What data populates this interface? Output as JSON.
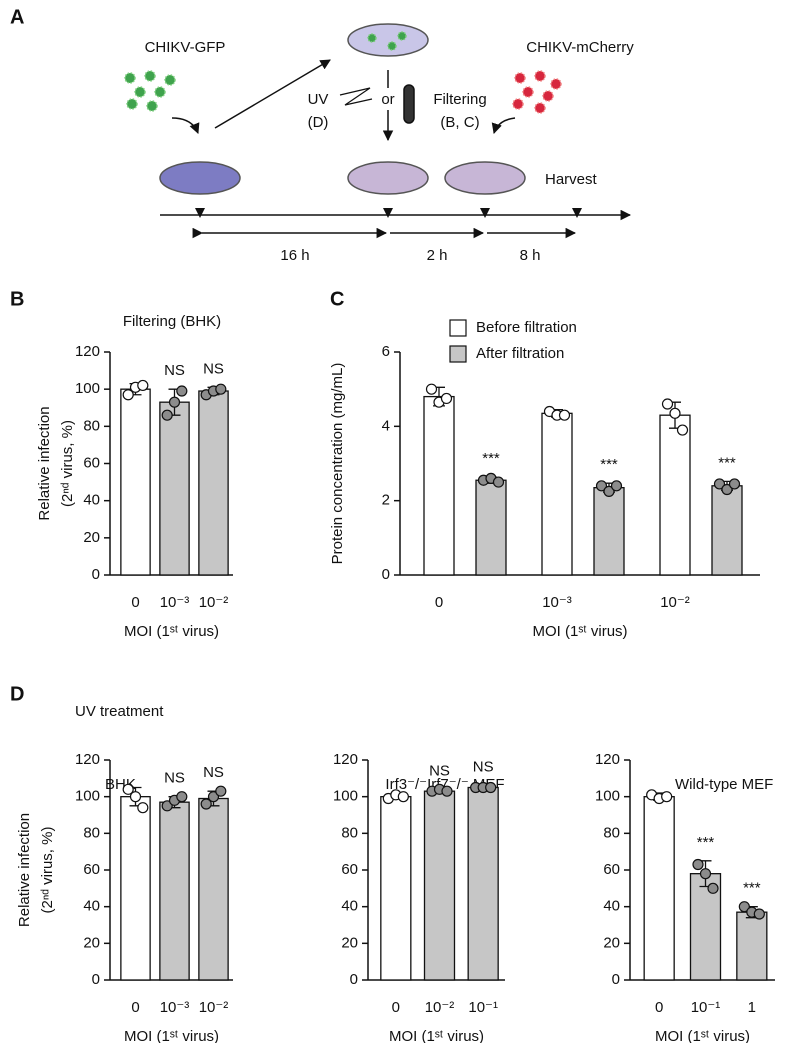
{
  "panel_labels": {
    "a": "A",
    "b": "B",
    "c": "C",
    "d": "D"
  },
  "diagram": {
    "virus_1": "CHIKV-GFP",
    "virus_2": "CHIKV-mCherry",
    "uv": "UV",
    "uv_panel": "(D)",
    "or": "or",
    "filtering": "Filtering",
    "filtering_panels": "(B, C)",
    "harvest": "Harvest",
    "intervals": [
      "16 h",
      "2 h",
      "8 h"
    ]
  },
  "uv_group_title": "UV treatment",
  "chart_data": [
    {
      "type": "bar",
      "title": "Filtering (BHK)",
      "ylabel": [
        "Relative infection",
        "(2ⁿᵈ virus, %)"
      ],
      "xlabel": "MOI (1ˢᵗ virus)",
      "categories": [
        "0",
        "10⁻³",
        "10⁻²"
      ],
      "values": [
        100,
        93,
        99
      ],
      "errors": [
        3,
        7,
        2
      ],
      "points": [
        [
          97,
          101,
          102
        ],
        [
          86,
          93,
          99
        ],
        [
          97,
          99,
          100
        ]
      ],
      "colors": [
        "#ffffff",
        "#c6c6c6",
        "#c6c6c6"
      ],
      "annotations": [
        null,
        "NS",
        "NS"
      ],
      "ylim": [
        0,
        120
      ],
      "yticks": [
        0,
        20,
        40,
        60,
        80,
        100,
        120
      ]
    },
    {
      "type": "bar",
      "ylabel": "Protein concentration (mg/mL)",
      "xlabel": "MOI (1ˢᵗ virus)",
      "categories": [
        "0",
        "10⁻³",
        "10⁻²"
      ],
      "series": [
        {
          "name": "Before filtration",
          "color": "#ffffff",
          "values": [
            4.8,
            4.35,
            4.3
          ],
          "errors": [
            0.25,
            0.1,
            0.35
          ],
          "points": [
            [
              5.0,
              4.65,
              4.75
            ],
            [
              4.4,
              4.3,
              4.3
            ],
            [
              4.6,
              4.35,
              3.9
            ]
          ],
          "annotations": [
            null,
            null,
            null
          ]
        },
        {
          "name": "After filtration",
          "color": "#c6c6c6",
          "values": [
            2.55,
            2.35,
            2.4
          ],
          "errors": [
            0.08,
            0.12,
            0.12
          ],
          "points": [
            [
              2.55,
              2.6,
              2.5
            ],
            [
              2.4,
              2.25,
              2.4
            ],
            [
              2.45,
              2.3,
              2.45
            ]
          ],
          "annotations": [
            "***",
            "***",
            "***"
          ]
        }
      ],
      "legend": "top",
      "ylim": [
        0,
        6
      ],
      "yticks": [
        0,
        2,
        4,
        6
      ]
    },
    {
      "type": "bar",
      "title": "BHK",
      "ylabel": [
        "Relative infection",
        "(2ⁿᵈ virus, %)"
      ],
      "xlabel": "MOI (1ˢᵗ virus)",
      "categories": [
        "0",
        "10⁻³",
        "10⁻²"
      ],
      "values": [
        100,
        97,
        99
      ],
      "errors": [
        5,
        3,
        4
      ],
      "points": [
        [
          104,
          100,
          94
        ],
        [
          95,
          98,
          100
        ],
        [
          96,
          100,
          103
        ]
      ],
      "colors": [
        "#ffffff",
        "#c6c6c6",
        "#c6c6c6"
      ],
      "annotations": [
        null,
        "NS",
        "NS"
      ],
      "ylim": [
        0,
        120
      ],
      "yticks": [
        0,
        20,
        40,
        60,
        80,
        100,
        120
      ]
    },
    {
      "type": "bar",
      "title": "Irf3⁻/⁻Irf7⁻/⁻ MEF",
      "xlabel": "MOI (1ˢᵗ virus)",
      "categories": [
        "0",
        "10⁻²",
        "10⁻¹"
      ],
      "values": [
        100,
        103,
        105
      ],
      "errors": [
        1,
        1,
        1
      ],
      "points": [
        [
          99,
          101,
          100
        ],
        [
          103,
          104,
          103
        ],
        [
          105,
          105,
          105
        ]
      ],
      "colors": [
        "#ffffff",
        "#c6c6c6",
        "#c6c6c6"
      ],
      "annotations": [
        null,
        "NS",
        "NS"
      ],
      "ylim": [
        0,
        120
      ],
      "yticks": [
        0,
        20,
        40,
        60,
        80,
        100,
        120
      ]
    },
    {
      "type": "bar",
      "title": "Wild-type MEF",
      "xlabel": "MOI (1ˢᵗ virus)",
      "categories": [
        "0",
        "10⁻¹",
        "1"
      ],
      "values": [
        100,
        58,
        37
      ],
      "errors": [
        2,
        7,
        3
      ],
      "points": [
        [
          101,
          99,
          100
        ],
        [
          63,
          58,
          50
        ],
        [
          40,
          37,
          36
        ]
      ],
      "colors": [
        "#ffffff",
        "#c6c6c6",
        "#c6c6c6"
      ],
      "annotations": [
        null,
        "***",
        "***"
      ],
      "ylim": [
        0,
        120
      ],
      "yticks": [
        0,
        20,
        40,
        60,
        80,
        100,
        120
      ]
    }
  ]
}
